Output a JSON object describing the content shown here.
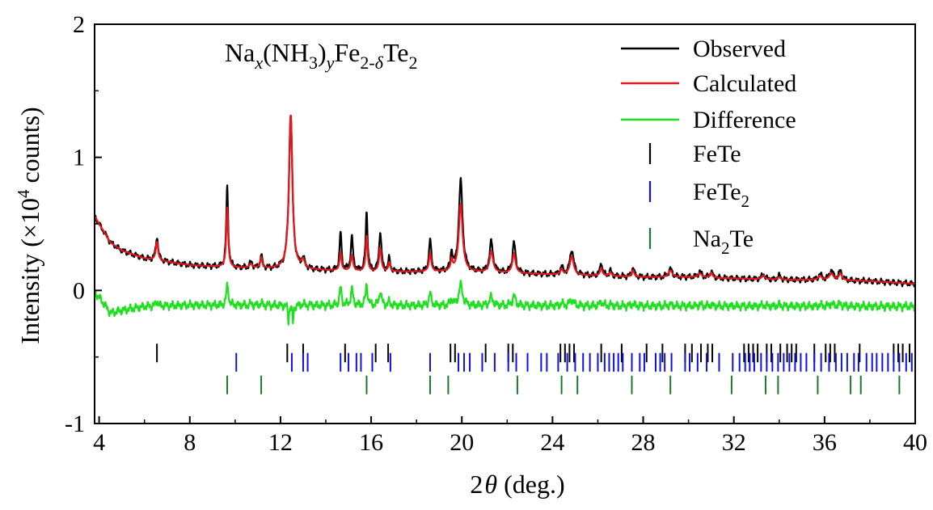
{
  "chart_data": {
    "type": "line",
    "formula": {
      "parts": [
        {
          "text": "Na",
          "style": "normal"
        },
        {
          "text": "x",
          "style": "sub-italic"
        },
        {
          "text": "(NH",
          "style": "normal"
        },
        {
          "text": "3",
          "style": "sub"
        },
        {
          "text": ")",
          "style": "normal"
        },
        {
          "text": "y",
          "style": "sub-italic"
        },
        {
          "text": "Fe",
          "style": "normal"
        },
        {
          "text": "2-",
          "style": "sub"
        },
        {
          "text": "δ",
          "style": "sub-italic"
        },
        {
          "text": "Te",
          "style": "normal"
        },
        {
          "text": "2",
          "style": "sub"
        }
      ]
    },
    "xlabel": {
      "prefix": "2",
      "symbol": "θ",
      "suffix": " (deg.)"
    },
    "ylabel": {
      "prefix": "Intensity (×10",
      "sup": "4",
      "suffix": " counts)"
    },
    "xlim": [
      3.8,
      40
    ],
    "ylim": [
      -1,
      2
    ],
    "xticks": [
      4,
      8,
      12,
      16,
      20,
      24,
      28,
      32,
      36,
      40
    ],
    "yticks": [
      -1,
      0,
      1,
      2
    ],
    "xtick_labels": [
      "4",
      "8",
      "12",
      "16",
      "20",
      "24",
      "28",
      "32",
      "36",
      "40"
    ],
    "ytick_labels": [
      "-1",
      "0",
      "1",
      "2"
    ],
    "colors": {
      "observed": "#000000",
      "calculated": "#e8161b",
      "difference": "#1fe01f",
      "FeTe": "#000000",
      "FeTe2": "#1010e0",
      "Na2Te": "#1a7a2a"
    },
    "legend": {
      "placement": "top-right",
      "entries": [
        {
          "label": "Observed",
          "sub": "",
          "marker": "line",
          "color": "#000000"
        },
        {
          "label": "Calculated",
          "sub": "",
          "marker": "line",
          "color": "#e8161b"
        },
        {
          "label": "Difference",
          "sub": "",
          "marker": "line",
          "color": "#1fe01f"
        },
        {
          "label": "FeTe",
          "sub": "",
          "marker": "tick",
          "color": "#000000"
        },
        {
          "label": "FeTe",
          "sub": "2",
          "marker": "tick",
          "color": "#1010e0"
        },
        {
          "label": "Na",
          "sub": "2",
          "suffix": "Te",
          "marker": "tick",
          "color": "#1a7a2a"
        }
      ]
    },
    "background": [
      [
        3.8,
        0.56
      ],
      [
        4.0,
        0.5
      ],
      [
        4.5,
        0.36
      ],
      [
        5.0,
        0.3
      ],
      [
        6.0,
        0.24
      ],
      [
        8.0,
        0.19
      ],
      [
        10.0,
        0.17
      ],
      [
        12.0,
        0.16
      ],
      [
        14.0,
        0.15
      ],
      [
        16.0,
        0.14
      ],
      [
        18.0,
        0.14
      ],
      [
        20.0,
        0.14
      ],
      [
        22.0,
        0.13
      ],
      [
        24.0,
        0.12
      ],
      [
        26.0,
        0.11
      ],
      [
        28.0,
        0.1
      ],
      [
        30.0,
        0.1
      ],
      [
        32.0,
        0.09
      ],
      [
        34.0,
        0.08
      ],
      [
        36.0,
        0.08
      ],
      [
        38.0,
        0.07
      ],
      [
        40.0,
        0.05
      ]
    ],
    "peaks_observed": [
      [
        6.55,
        0.18,
        0.06
      ],
      [
        9.65,
        0.6,
        0.05
      ],
      [
        10.7,
        0.04,
        0.08
      ],
      [
        11.15,
        0.1,
        0.05
      ],
      [
        12.45,
        1.17,
        0.09
      ],
      [
        13.0,
        0.07,
        0.08
      ],
      [
        14.65,
        0.29,
        0.05
      ],
      [
        15.15,
        0.25,
        0.06
      ],
      [
        15.8,
        0.45,
        0.05
      ],
      [
        16.4,
        0.3,
        0.06
      ],
      [
        16.8,
        0.1,
        0.05
      ],
      [
        18.6,
        0.24,
        0.06
      ],
      [
        19.55,
        0.14,
        0.05
      ],
      [
        19.95,
        0.68,
        0.1
      ],
      [
        21.3,
        0.23,
        0.09
      ],
      [
        22.3,
        0.23,
        0.08
      ],
      [
        24.4,
        0.06,
        0.06
      ],
      [
        24.85,
        0.19,
        0.1
      ],
      [
        26.15,
        0.1,
        0.06
      ],
      [
        26.55,
        0.04,
        0.06
      ],
      [
        27.55,
        0.07,
        0.06
      ],
      [
        29.2,
        0.06,
        0.1
      ],
      [
        30.5,
        0.04,
        0.1
      ],
      [
        31.0,
        0.05,
        0.06
      ],
      [
        33.3,
        0.04,
        0.08
      ],
      [
        34.0,
        0.03,
        0.08
      ],
      [
        35.8,
        0.04,
        0.08
      ],
      [
        36.3,
        0.07,
        0.1
      ],
      [
        36.7,
        0.07,
        0.08
      ]
    ],
    "peaks_calculated": [
      [
        6.55,
        0.14,
        0.06
      ],
      [
        9.65,
        0.45,
        0.05
      ],
      [
        10.7,
        0.03,
        0.08
      ],
      [
        11.15,
        0.08,
        0.05
      ],
      [
        12.45,
        1.16,
        0.09
      ],
      [
        13.0,
        0.06,
        0.08
      ],
      [
        14.65,
        0.14,
        0.05
      ],
      [
        15.15,
        0.12,
        0.06
      ],
      [
        15.8,
        0.27,
        0.05
      ],
      [
        16.4,
        0.18,
        0.06
      ],
      [
        16.8,
        0.07,
        0.05
      ],
      [
        18.6,
        0.14,
        0.06
      ],
      [
        19.55,
        0.08,
        0.05
      ],
      [
        19.95,
        0.51,
        0.1
      ],
      [
        21.3,
        0.16,
        0.09
      ],
      [
        22.3,
        0.15,
        0.08
      ],
      [
        24.4,
        0.04,
        0.06
      ],
      [
        24.85,
        0.14,
        0.1
      ],
      [
        26.15,
        0.06,
        0.06
      ],
      [
        26.55,
        0.03,
        0.06
      ],
      [
        27.55,
        0.05,
        0.06
      ],
      [
        29.2,
        0.05,
        0.1
      ],
      [
        30.5,
        0.03,
        0.1
      ],
      [
        31.0,
        0.04,
        0.06
      ],
      [
        33.3,
        0.03,
        0.08
      ],
      [
        34.0,
        0.02,
        0.08
      ],
      [
        35.8,
        0.03,
        0.08
      ],
      [
        36.3,
        0.05,
        0.1
      ],
      [
        36.7,
        0.05,
        0.08
      ]
    ],
    "difference_offset": -0.11,
    "difference_lowfreq": [
      [
        3.8,
        -0.02
      ],
      [
        4.0,
        -0.05
      ],
      [
        4.5,
        -0.17
      ],
      [
        5.0,
        -0.15
      ],
      [
        6.0,
        -0.12
      ],
      [
        8.0,
        -0.11
      ],
      [
        40.0,
        -0.12
      ]
    ],
    "difference_glitches": [
      [
        12.35,
        -0.12,
        0.03
      ],
      [
        12.55,
        -0.14,
        0.03
      ],
      [
        9.7,
        0.04,
        0.03
      ]
    ],
    "reflections": [
      {
        "phase": "FeTe",
        "y": -0.47,
        "x": [
          6.55,
          12.3,
          13.0,
          14.85,
          16.2,
          16.75,
          19.5,
          19.7,
          21.05,
          22.05,
          22.25,
          24.35,
          24.55,
          24.75,
          24.95,
          26.15,
          27.05,
          28.15,
          28.85,
          29.85,
          30.15,
          30.55,
          30.85,
          31.05,
          32.45,
          32.65,
          32.85,
          33.05,
          33.45,
          33.65,
          34.05,
          34.35,
          34.55,
          34.75,
          35.55,
          36.05,
          36.25,
          36.45,
          37.55,
          39.05,
          39.25,
          39.45,
          39.75
        ]
      },
      {
        "phase": "FeTe2",
        "y": -0.54,
        "x": [
          10.05,
          12.5,
          13.0,
          13.2,
          14.65,
          15.0,
          15.35,
          15.55,
          16.05,
          16.85,
          18.6,
          19.85,
          20.1,
          20.35,
          20.9,
          21.45,
          22.05,
          22.4,
          22.9,
          23.5,
          23.75,
          24.25,
          24.65,
          25.0,
          25.35,
          25.65,
          26.0,
          26.3,
          26.5,
          26.7,
          26.9,
          27.1,
          27.5,
          27.85,
          28.05,
          28.55,
          28.75,
          28.95,
          29.25,
          29.85,
          30.05,
          30.4,
          30.8,
          31.35,
          31.95,
          32.25,
          32.5,
          32.7,
          32.9,
          33.2,
          33.45,
          33.7,
          33.95,
          34.2,
          34.45,
          34.7,
          34.95,
          35.2,
          35.55,
          35.85,
          36.2,
          36.5,
          36.75,
          37.0,
          37.3,
          37.5,
          37.85,
          38.1,
          38.3,
          38.55,
          38.8,
          39.05,
          39.3,
          39.6,
          39.85
        ]
      },
      {
        "phase": "Na2Te",
        "y": -0.71,
        "x": [
          9.65,
          11.15,
          15.8,
          18.6,
          19.4,
          22.45,
          24.4,
          25.1,
          27.5,
          29.2,
          31.9,
          33.4,
          33.95,
          35.7,
          37.15,
          37.6,
          39.3
        ]
      }
    ]
  }
}
